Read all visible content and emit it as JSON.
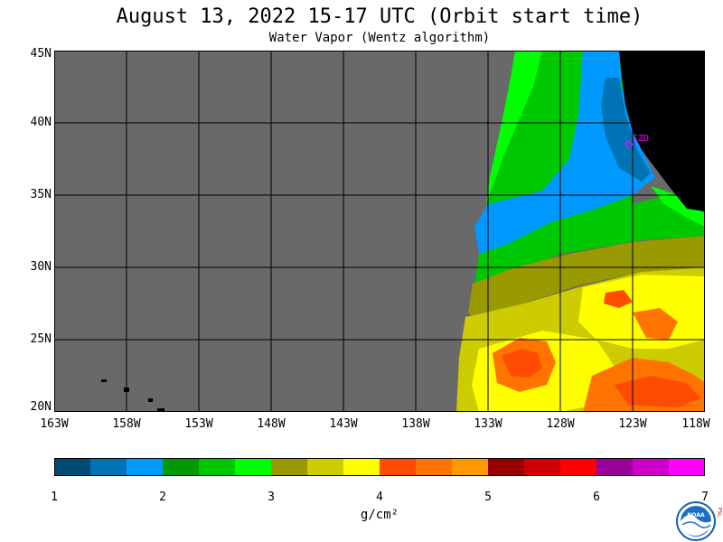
{
  "header": {
    "title": "August 13, 2022  15-17 UTC  (Orbit start time)",
    "subtitle": "Water Vapor (Wentz algorithm)"
  },
  "map": {
    "lat_labels": [
      "45N",
      "40N",
      "35N",
      "30N",
      "25N",
      "20N"
    ],
    "lon_labels": [
      "163W",
      "158W",
      "153W",
      "148W",
      "143W",
      "138W",
      "133W",
      "128W",
      "123W",
      "118W"
    ],
    "station_label": "CZD",
    "colors": {
      "no_data": "#696969",
      "land": "#000000",
      "grid": "#000000",
      "station": "#ff00ff"
    }
  },
  "colorbar": {
    "tick_labels": [
      "1",
      "2",
      "3",
      "4",
      "5",
      "6",
      "7"
    ],
    "units": "g/cm²",
    "colors": [
      "#004c73",
      "#0073b4",
      "#0099ff",
      "#009900",
      "#00c800",
      "#00ff00",
      "#999900",
      "#cccc00",
      "#ffff00",
      "#ff4c00",
      "#ff7300",
      "#ff9900",
      "#990000",
      "#cc0000",
      "#ff0000",
      "#990099",
      "#cc00cc",
      "#ff00ff"
    ]
  },
  "logo": {
    "name": "noaa-logo",
    "side_text": "PSL"
  }
}
